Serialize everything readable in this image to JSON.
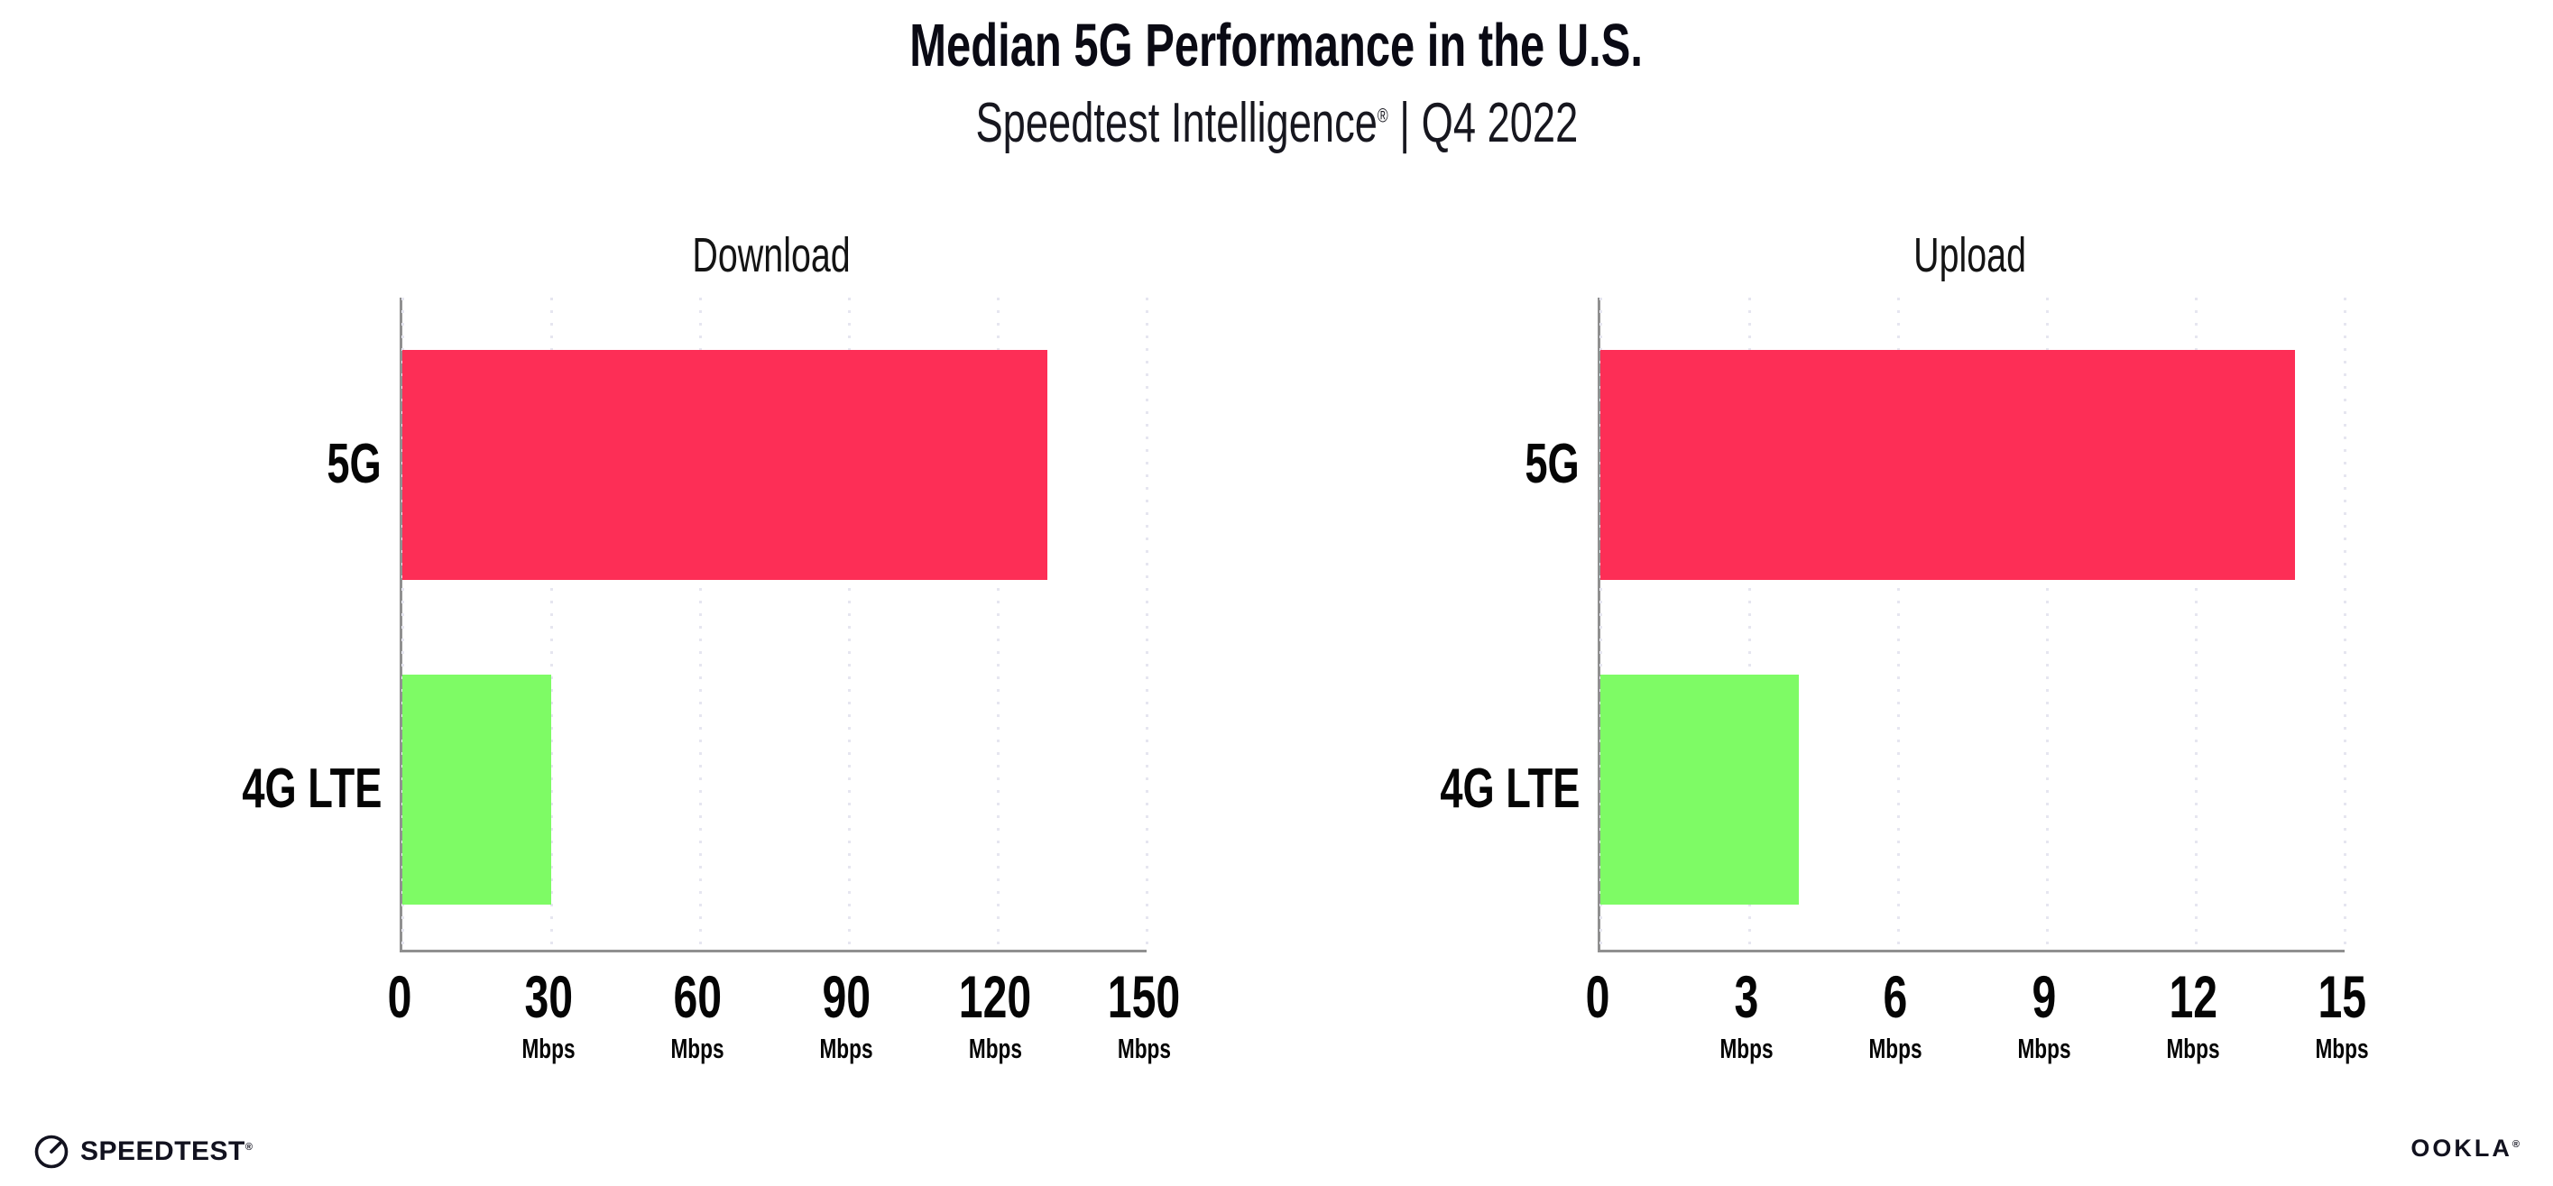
{
  "header": {
    "title": "Median 5G Performance in the U.S.",
    "subtitle_brand": "Speedtest Intelligence",
    "subtitle_reg": "®",
    "subtitle_rest": " | Q4 2022"
  },
  "footer": {
    "speedtest_icon": "gauge-icon",
    "speedtest_label": "SPEEDTEST",
    "speedtest_reg": "®",
    "ookla_label": "OOKLA",
    "ookla_reg": "®"
  },
  "colors": {
    "bar_5g": "#FD2E56",
    "bar_4g_lte": "#7EFB65",
    "axis": "#909090",
    "gridline": "#E6E6F0",
    "text": "#0A0A14"
  },
  "chart_data": [
    {
      "type": "bar",
      "orientation": "horizontal",
      "title": "Download",
      "categories": [
        "5G",
        "4G LTE"
      ],
      "values": [
        130,
        30
      ],
      "unit": "Mbps",
      "xlim": [
        0,
        150
      ],
      "xticks": [
        0,
        30,
        60,
        90,
        120,
        150
      ],
      "tick_unit_label": "Mbps",
      "unit_on_zero_tick": false,
      "bar_colors": [
        "#FD2E56",
        "#7EFB65"
      ],
      "grid": "dotted-vertical",
      "legend": "none"
    },
    {
      "type": "bar",
      "orientation": "horizontal",
      "title": "Upload",
      "categories": [
        "5G",
        "4G LTE"
      ],
      "values": [
        14,
        4
      ],
      "unit": "Mbps",
      "xlim": [
        0,
        15
      ],
      "xticks": [
        0,
        3,
        6,
        9,
        12,
        15
      ],
      "tick_unit_label": "Mbps",
      "unit_on_zero_tick": false,
      "bar_colors": [
        "#FD2E56",
        "#7EFB65"
      ],
      "grid": "dotted-vertical",
      "legend": "none"
    }
  ]
}
